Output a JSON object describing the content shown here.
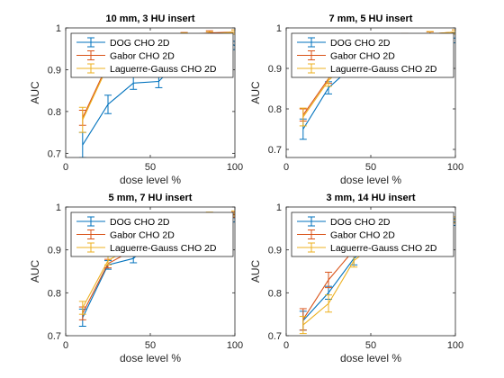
{
  "colors": {
    "dog": "#0072bd",
    "gabor": "#d95319",
    "laguerre": "#edb120",
    "axis": "#262626",
    "legend_border": "#262626"
  },
  "chart_data": [
    {
      "type": "line",
      "title": "10 mm, 3 HU insert",
      "xlabel": "dose level %",
      "ylabel": "AUC",
      "xlim": [
        0,
        100
      ],
      "ylim": [
        0.69,
        1.0
      ],
      "xticks": [
        0,
        50,
        100
      ],
      "yticks": [
        0.7,
        0.8,
        0.9,
        1
      ],
      "ytick_labels": [
        "0.7",
        "0.8",
        "0.9",
        "1"
      ],
      "grid": false,
      "legend": "top-left",
      "x": [
        10,
        25,
        40,
        55,
        70,
        85,
        100
      ],
      "series": [
        {
          "name": "DOG CHO 2D",
          "color": "#0072bd",
          "values": [
            0.72,
            0.817,
            0.868,
            0.872,
            0.935,
            0.978,
            0.958
          ],
          "errors": [
            0.03,
            0.022,
            0.015,
            0.015,
            0.012,
            0.008,
            0.01
          ]
        },
        {
          "name": "Gabor CHO 2D",
          "color": "#d95319",
          "values": [
            0.785,
            0.915,
            0.955,
            0.975,
            0.983,
            0.988,
            0.99
          ],
          "errors": [
            0.018,
            0.012,
            0.01,
            0.008,
            0.006,
            0.005,
            0.005
          ]
        },
        {
          "name": "Laguerre-Gauss CHO 2D",
          "color": "#edb120",
          "values": [
            0.78,
            0.91,
            0.95,
            0.97,
            0.98,
            0.985,
            0.99
          ],
          "errors": [
            0.03,
            0.015,
            0.012,
            0.01,
            0.008,
            0.006,
            0.005
          ]
        }
      ]
    },
    {
      "type": "line",
      "title": "7 mm, 5 HU insert",
      "xlabel": "dose level %",
      "ylabel": "AUC",
      "xlim": [
        0,
        100
      ],
      "ylim": [
        0.68,
        1.0
      ],
      "xticks": [
        0,
        50,
        100
      ],
      "yticks": [
        0.7,
        0.8,
        0.9,
        1
      ],
      "ytick_labels": [
        "0.7",
        "0.8",
        "0.9",
        "1"
      ],
      "grid": false,
      "legend": "top-left",
      "x": [
        10,
        25,
        40,
        55,
        70,
        85,
        100
      ],
      "series": [
        {
          "name": "DOG CHO 2D",
          "color": "#0072bd",
          "values": [
            0.75,
            0.852,
            0.908,
            0.94,
            0.97,
            0.975,
            0.975
          ],
          "errors": [
            0.025,
            0.015,
            0.012,
            0.01,
            0.008,
            0.008,
            0.012
          ]
        },
        {
          "name": "Gabor CHO 2D",
          "color": "#d95319",
          "values": [
            0.785,
            0.875,
            0.935,
            0.965,
            0.98,
            0.985,
            0.99
          ],
          "errors": [
            0.015,
            0.012,
            0.01,
            0.008,
            0.006,
            0.005,
            0.005
          ]
        },
        {
          "name": "Laguerre-Gauss CHO 2D",
          "color": "#edb120",
          "values": [
            0.78,
            0.87,
            0.93,
            0.962,
            0.978,
            0.985,
            0.99
          ],
          "errors": [
            0.022,
            0.014,
            0.012,
            0.009,
            0.007,
            0.006,
            0.005
          ]
        }
      ]
    },
    {
      "type": "line",
      "title": "5 mm, 7 HU insert",
      "xlabel": "dose level %",
      "ylabel": "AUC",
      "xlim": [
        0,
        100
      ],
      "ylim": [
        0.7,
        1.0
      ],
      "xticks": [
        0,
        50,
        100
      ],
      "yticks": [
        0.7,
        0.8,
        0.9,
        1
      ],
      "ytick_labels": [
        "0.7",
        "0.8",
        "0.9",
        "1"
      ],
      "grid": false,
      "legend": "top-left",
      "x": [
        10,
        25,
        40,
        55,
        70,
        85,
        100
      ],
      "series": [
        {
          "name": "DOG CHO 2D",
          "color": "#0072bd",
          "values": [
            0.742,
            0.865,
            0.88,
            0.935,
            0.965,
            0.98,
            0.975
          ],
          "errors": [
            0.02,
            0.01,
            0.01,
            0.008,
            0.008,
            0.005,
            0.01
          ]
        },
        {
          "name": "Gabor CHO 2D",
          "color": "#d95319",
          "values": [
            0.752,
            0.868,
            0.9,
            0.945,
            0.97,
            0.982,
            0.982
          ],
          "errors": [
            0.015,
            0.01,
            0.01,
            0.008,
            0.007,
            0.005,
            0.006
          ]
        },
        {
          "name": "Laguerre-Gauss CHO 2D",
          "color": "#edb120",
          "values": [
            0.765,
            0.875,
            0.91,
            0.95,
            0.972,
            0.983,
            0.985
          ],
          "errors": [
            0.015,
            0.01,
            0.01,
            0.008,
            0.007,
            0.005,
            0.006
          ]
        }
      ]
    },
    {
      "type": "line",
      "title": "3 mm, 14 HU insert",
      "xlabel": "dose level %",
      "ylabel": "AUC",
      "xlim": [
        0,
        100
      ],
      "ylim": [
        0.7,
        1.0
      ],
      "xticks": [
        0,
        50,
        100
      ],
      "yticks": [
        0.7,
        0.8,
        0.9,
        1
      ],
      "ytick_labels": [
        "0.7",
        "0.8",
        "0.9",
        "1"
      ],
      "grid": false,
      "legend": "top-left",
      "x": [
        10,
        25,
        40,
        55,
        70,
        85,
        100
      ],
      "series": [
        {
          "name": "DOG CHO 2D",
          "color": "#0072bd",
          "values": [
            0.735,
            0.8,
            0.88,
            0.925,
            0.955,
            0.965,
            0.965
          ],
          "errors": [
            0.022,
            0.015,
            0.015,
            0.01,
            0.01,
            0.008,
            0.008
          ]
        },
        {
          "name": "Gabor CHO 2D",
          "color": "#d95319",
          "values": [
            0.738,
            0.83,
            0.9,
            0.935,
            0.96,
            0.97,
            0.97
          ],
          "errors": [
            0.025,
            0.018,
            0.012,
            0.01,
            0.008,
            0.007,
            0.007
          ]
        },
        {
          "name": "Laguerre-Gauss CHO 2D",
          "color": "#edb120",
          "values": [
            0.725,
            0.775,
            0.875,
            0.92,
            0.95,
            0.965,
            0.97
          ],
          "errors": [
            0.02,
            0.02,
            0.015,
            0.012,
            0.01,
            0.008,
            0.007
          ]
        }
      ]
    }
  ]
}
